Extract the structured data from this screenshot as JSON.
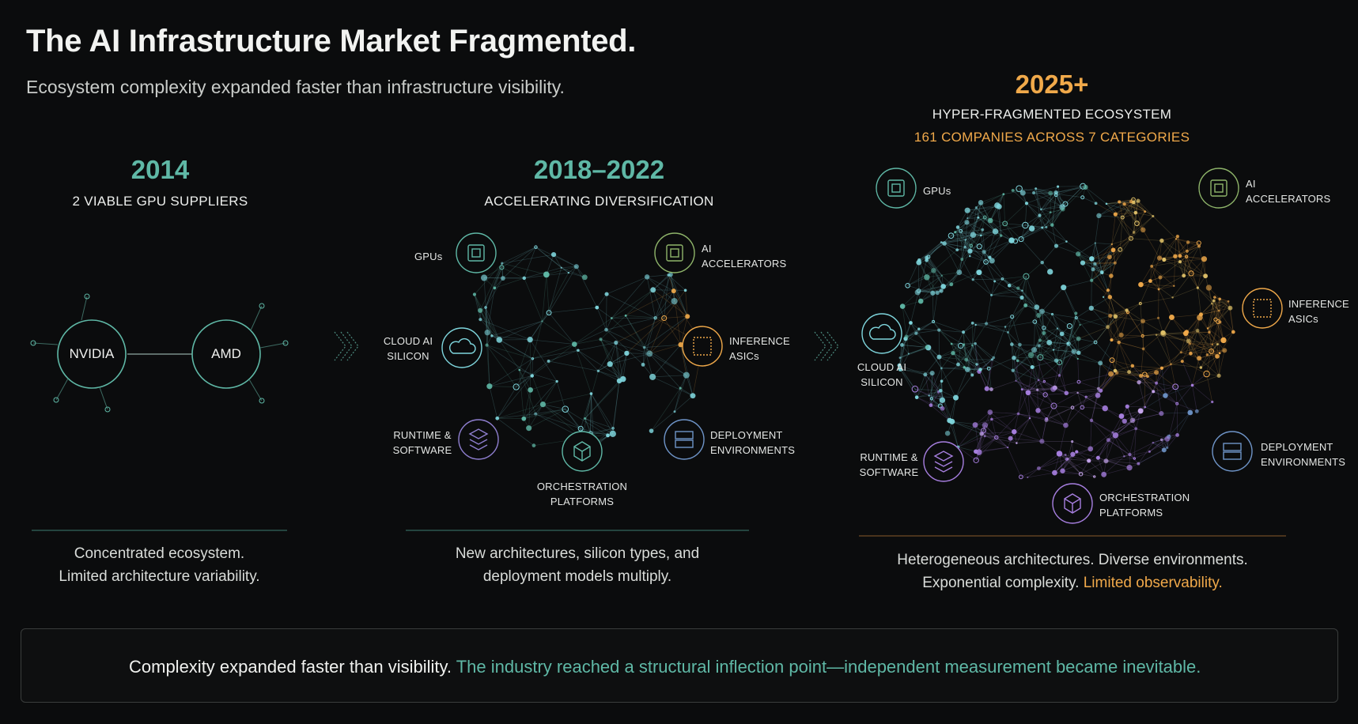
{
  "header": {
    "title": "The AI Infrastructure Market Fragmented.",
    "subtitle": "Ecosystem complexity expanded faster than infrastructure visibility."
  },
  "stages": [
    {
      "year": "2014",
      "heading": "2 VIABLE GPU SUPPLIERS",
      "suppliers": [
        "NVIDIA",
        "AMD"
      ],
      "caption": [
        "Concentrated ecosystem.",
        "Limited architecture variability."
      ]
    },
    {
      "year": "2018–2022",
      "heading": "ACCELERATING DIVERSIFICATION",
      "categories": {
        "gpus": "GPUs",
        "ai_accel_1": "AI",
        "ai_accel_2": "ACCELERATORS",
        "cloud_1": "CLOUD AI",
        "cloud_2": "SILICON",
        "inference_1": "INFERENCE",
        "inference_2": "ASICs",
        "runtime_1": "RUNTIME &",
        "runtime_2": "SOFTWARE",
        "deploy_1": "DEPLOYMENT",
        "deploy_2": "ENVIRONMENTS",
        "orch_1": "ORCHESTRATION",
        "orch_2": "PLATFORMS"
      },
      "caption": [
        "New architectures, silicon types, and",
        "deployment models multiply."
      ]
    },
    {
      "year": "2025+",
      "heading": "HYPER-FRAGMENTED ECOSYSTEM",
      "subheading": "161 COMPANIES ACROSS 7 CATEGORIES",
      "categories": {
        "gpus": "GPUs",
        "ai_accel_1": "AI",
        "ai_accel_2": "ACCELERATORS",
        "cloud_1": "CLOUD AI",
        "cloud_2": "SILICON",
        "inference_1": "INFERENCE",
        "inference_2": "ASICs",
        "runtime_1": "RUNTIME &",
        "runtime_2": "SOFTWARE",
        "deploy_1": "DEPLOYMENT",
        "deploy_2": "ENVIRONMENTS",
        "orch_1": "ORCHESTRATION",
        "orch_2": "PLATFORMS"
      },
      "caption_line1": "Heterogeneous architectures. Diverse environments.",
      "caption_line2_a": "Exponential complexity.",
      "caption_line2_b": "Limited observability."
    }
  ],
  "footer": {
    "lead": "Complexity expanded faster than visibility.",
    "highlight": "The industry reached a structural inflection point—independent measurement became inevitable."
  },
  "colors": {
    "teal": "#5fb8a6",
    "orange": "#f0a94a",
    "purple": "#a77fe0",
    "blue": "#6f95c9",
    "green": "#8fb56a",
    "cyan": "#7fd6dd"
  },
  "icons": [
    "chip-icon",
    "cloud-icon",
    "grid-chip-icon",
    "layers-icon",
    "cube-icon",
    "server-icon",
    "radar-icon",
    "chevron-right-icon"
  ]
}
